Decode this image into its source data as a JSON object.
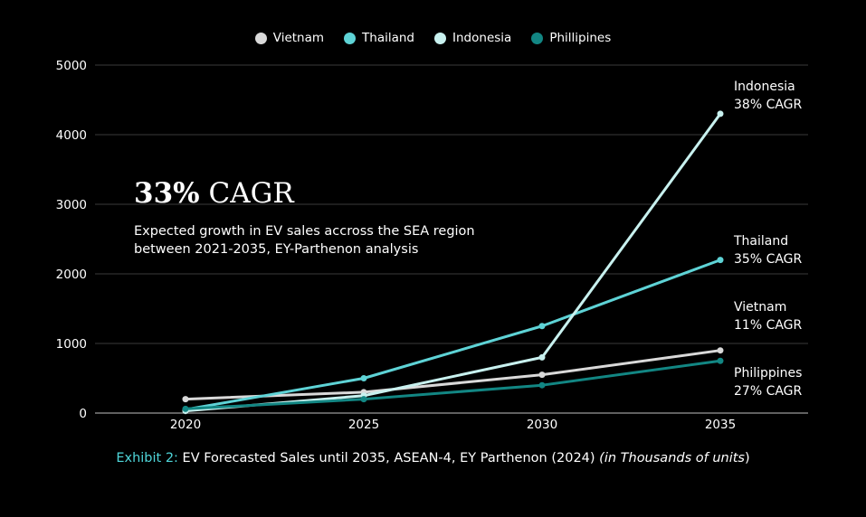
{
  "chart_data": {
    "type": "line",
    "x": [
      2020,
      2025,
      2030,
      2035
    ],
    "ylim": [
      0,
      5000
    ],
    "yticks": [
      0,
      1000,
      2000,
      3000,
      4000,
      5000
    ],
    "grid": true,
    "legend_position": "top-center",
    "series": [
      {
        "name": "Vietnam",
        "color": "#d9d9d9",
        "values": [
          200,
          300,
          550,
          900
        ]
      },
      {
        "name": "Thailand",
        "color": "#5ed3d6",
        "values": [
          50,
          500,
          1250,
          2200
        ]
      },
      {
        "name": "Indonesia",
        "color": "#c8f1ef",
        "values": [
          30,
          250,
          800,
          4300
        ]
      },
      {
        "name": "Phillipines",
        "color": "#128683",
        "values": [
          60,
          200,
          400,
          750
        ]
      }
    ],
    "annotations": [
      {
        "country": "Indonesia",
        "cagr": "38% CAGR"
      },
      {
        "country": "Thailand",
        "cagr": "35% CAGR"
      },
      {
        "country": "Vietnam",
        "cagr": "11% CAGR"
      },
      {
        "country": "Philippines",
        "cagr": "27% CAGR"
      }
    ]
  },
  "headline": {
    "number": "33%",
    "unit": "CAGR",
    "subtitle": "Expected growth in EV sales accross the SEA region between 2021-2035, EY-Parthenon analysis"
  },
  "caption": {
    "exhibit": "Exhibit 2:",
    "text": " EV Forecasted Sales until 2035, ASEAN-4, EY Parthenon (2024) ",
    "italic": "(in Thousands of units",
    "close": ")"
  }
}
